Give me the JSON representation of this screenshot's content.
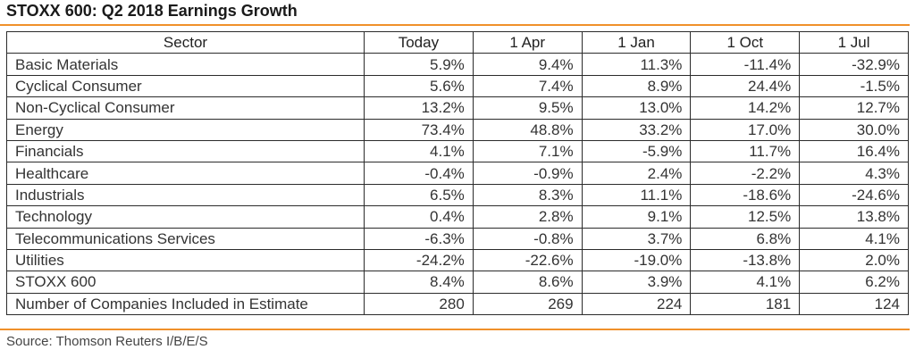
{
  "title": "STOXX 600: Q2 2018 Earnings Growth",
  "colors": {
    "accent_rule": "#f0902a",
    "border": "#2b2b2b",
    "text": "#222222"
  },
  "table": {
    "headers": [
      "Sector",
      "Today",
      "1 Apr",
      "1 Jan",
      "1 Oct",
      "1 Jul"
    ],
    "rows": [
      [
        "Basic Materials",
        "5.9%",
        "9.4%",
        "11.3%",
        "-11.4%",
        "-32.9%"
      ],
      [
        "Cyclical Consumer",
        "5.6%",
        "7.4%",
        "8.9%",
        "24.4%",
        "-1.5%"
      ],
      [
        "Non-Cyclical Consumer",
        "13.2%",
        "9.5%",
        "13.0%",
        "14.2%",
        "12.7%"
      ],
      [
        "Energy",
        "73.4%",
        "48.8%",
        "33.2%",
        "17.0%",
        "30.0%"
      ],
      [
        "Financials",
        "4.1%",
        "7.1%",
        "-5.9%",
        "11.7%",
        "16.4%"
      ],
      [
        "Healthcare",
        "-0.4%",
        "-0.9%",
        "2.4%",
        "-2.2%",
        "4.3%"
      ],
      [
        "Industrials",
        "6.5%",
        "8.3%",
        "11.1%",
        "-18.6%",
        "-24.6%"
      ],
      [
        "Technology",
        "0.4%",
        "2.8%",
        "9.1%",
        "12.5%",
        "13.8%"
      ],
      [
        "Telecommunications Services",
        "-6.3%",
        "-0.8%",
        "3.7%",
        "6.8%",
        "4.1%"
      ],
      [
        "Utilities",
        "-24.2%",
        "-22.6%",
        "-19.0%",
        "-13.8%",
        "2.0%"
      ],
      [
        "STOXX 600",
        "8.4%",
        "8.6%",
        "3.9%",
        "4.1%",
        "6.2%"
      ],
      [
        "Number of Companies Included in Estimate",
        "280",
        "269",
        "224",
        "181",
        "124"
      ]
    ]
  },
  "source": "Source: Thomson Reuters I/B/E/S"
}
